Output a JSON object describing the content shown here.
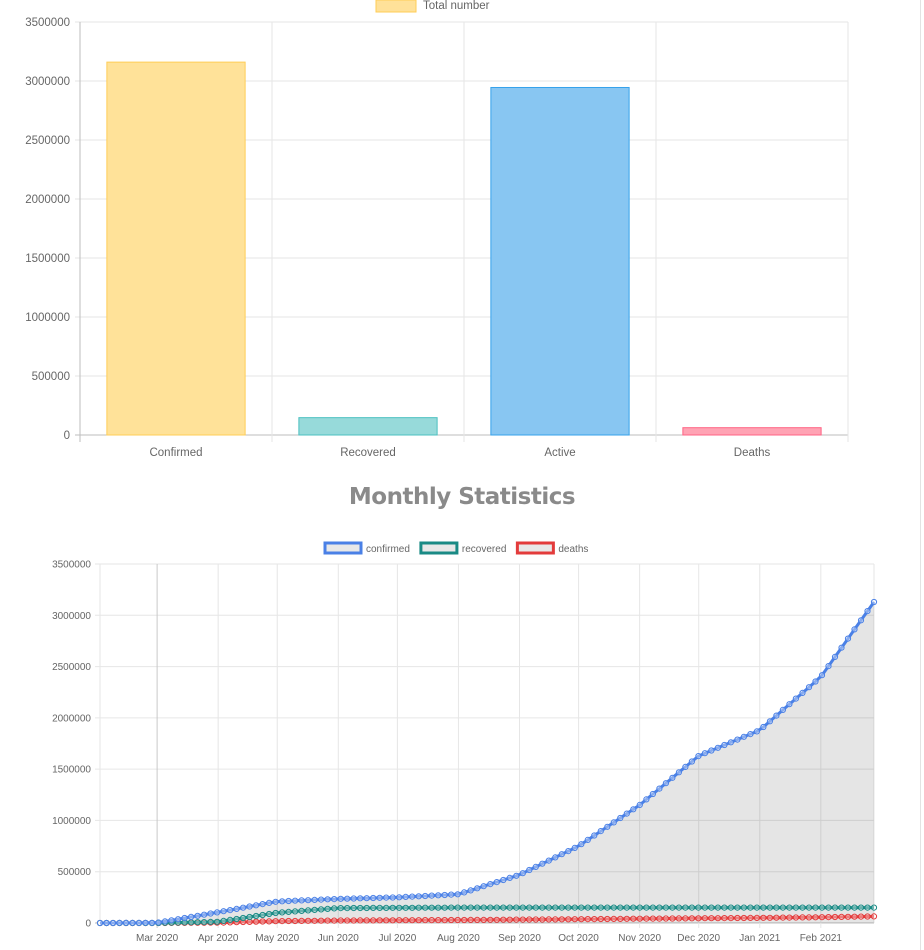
{
  "chart_data": [
    {
      "type": "bar",
      "legend": {
        "label": "Total number",
        "position": "top",
        "color": "#ffe199",
        "border": "#ffcd56"
      },
      "categories": [
        "Confirmed",
        "Recovered",
        "Active",
        "Deaths"
      ],
      "series": [
        {
          "name": "Total number",
          "values": [
            3160000,
            147000,
            2945000,
            62000
          ]
        }
      ],
      "colors": [
        {
          "fill": "#ffe299",
          "stroke": "#ffcd56"
        },
        {
          "fill": "#97dada",
          "stroke": "#4bc0c0"
        },
        {
          "fill": "#88c6f2",
          "stroke": "#36a2eb"
        },
        {
          "fill": "#ffa3b4",
          "stroke": "#ff6384"
        }
      ],
      "ylim": [
        0,
        3500000
      ],
      "yticks": [
        0,
        500000,
        1000000,
        1500000,
        2000000,
        2500000,
        3000000,
        3500000
      ],
      "grid": true
    },
    {
      "type": "line",
      "title": "Monthly Statistics",
      "legend_position": "top",
      "x_ticks": [
        "Mar 2020",
        "Apr 2020",
        "May 2020",
        "Jun 2020",
        "Jul 2020",
        "Aug 2020",
        "Sep 2020",
        "Oct 2020",
        "Nov 2020",
        "Dec 2020",
        "Jan 2021",
        "Feb 2021"
      ],
      "x": [
        "2020-02-01",
        "2020-03-01",
        "2020-04-01",
        "2020-05-01",
        "2020-06-01",
        "2020-07-01",
        "2020-08-01",
        "2020-09-01",
        "2020-10-01",
        "2020-11-01",
        "2020-12-01",
        "2021-01-01",
        "2021-02-01",
        "2021-02-28"
      ],
      "ylim": [
        0,
        3500000
      ],
      "yticks": [
        0,
        500000,
        1000000,
        1500000,
        2000000,
        2500000,
        3000000,
        3500000
      ],
      "grid": true,
      "series": [
        {
          "name": "confirmed",
          "color": "#4a80e6",
          "values": [
            0,
            2000,
            105000,
            210000,
            235000,
            250000,
            280000,
            470000,
            750000,
            1150000,
            1630000,
            1880000,
            2400000,
            3130000
          ]
        },
        {
          "name": "recovered",
          "color": "#1a8a85",
          "values": [
            0,
            0,
            12000,
            100000,
            145000,
            148000,
            150000,
            150000,
            150000,
            150000,
            150000,
            150000,
            150000,
            150000
          ]
        },
        {
          "name": "deaths",
          "color": "#e33b3b",
          "values": [
            0,
            0,
            3000,
            18000,
            24000,
            27000,
            29000,
            33000,
            37000,
            42000,
            46000,
            50000,
            56000,
            64000
          ]
        }
      ]
    }
  ]
}
